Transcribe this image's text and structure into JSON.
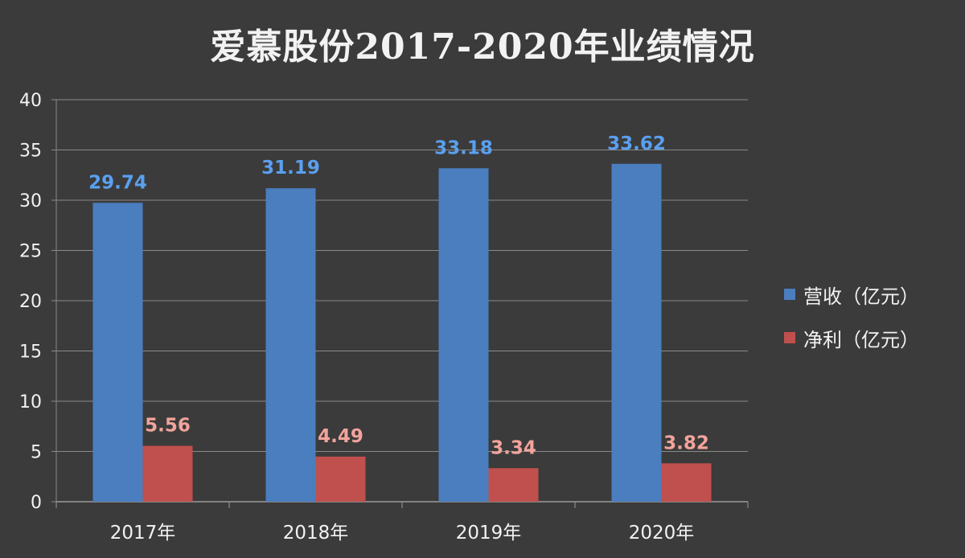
{
  "chart_data": {
    "type": "bar",
    "title": "爱慕股份2017-2020年业绩情况",
    "categories": [
      "2017年",
      "2018年",
      "2019年",
      "2020年"
    ],
    "series": [
      {
        "name": "营收（亿元）",
        "values": [
          29.74,
          31.19,
          33.18,
          33.62
        ],
        "labels": [
          "29.74",
          "31.19",
          "33.18",
          "33.62"
        ],
        "color": "#4a7ebf",
        "label_color": "#5aa0f0"
      },
      {
        "name": "净利（亿元）",
        "values": [
          5.56,
          4.49,
          3.34,
          3.82
        ],
        "labels": [
          "5.56",
          "4.49",
          "3.34",
          "3.82"
        ],
        "color": "#c0504d",
        "label_color": "#f2a49c"
      }
    ],
    "ylim": [
      0,
      40
    ],
    "yticks": [
      "0",
      "5",
      "10",
      "15",
      "20",
      "25",
      "30",
      "35",
      "40"
    ],
    "grid": true,
    "legend_position": "right"
  }
}
